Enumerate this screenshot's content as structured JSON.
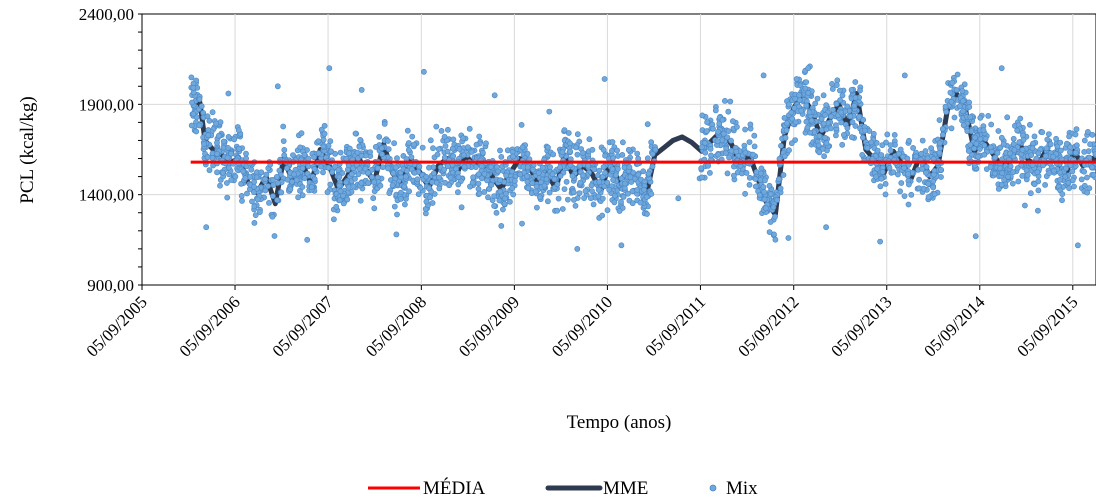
{
  "chart_data": {
    "type": "scatter",
    "title": "",
    "xlabel": "Tempo (anos)",
    "ylabel": "PCL (kcal/kg)",
    "x_range": [
      "05/09/2005",
      "05/12/2015"
    ],
    "ylim": [
      900,
      2400
    ],
    "y_ticks": [
      "900,00",
      "1400,00",
      "1900,00",
      "2400,00"
    ],
    "x_ticks": [
      "05/09/2005",
      "05/09/2006",
      "05/09/2007",
      "05/09/2008",
      "05/09/2009",
      "05/09/2010",
      "05/09/2011",
      "05/09/2012",
      "05/09/2013",
      "05/09/2014",
      "05/09/2015"
    ],
    "grid": true,
    "legend_position": "bottom",
    "series": [
      {
        "name": "MÉDIA",
        "kind": "line",
        "color": "#ff0000",
        "x": [
          "2006-03-15",
          "2015-12-05"
        ],
        "y": [
          1580,
          1580
        ]
      },
      {
        "name": "MME",
        "kind": "line",
        "color": "#2e3a4f",
        "x": [
          "2006-03-15",
          "2006-04-20",
          "2006-05-10",
          "2006-06-10",
          "2006-07-15",
          "2006-08-20",
          "2006-09-20",
          "2006-10-25",
          "2006-12-01",
          "2007-01-05",
          "2007-02-10",
          "2007-03-15",
          "2007-04-20",
          "2007-05-25",
          "2007-06-30",
          "2007-08-05",
          "2007-09-10",
          "2007-10-15",
          "2007-11-20",
          "2007-12-25",
          "2008-02-01",
          "2008-03-05",
          "2008-04-10",
          "2008-05-15",
          "2008-06-20",
          "2008-07-25",
          "2008-09-01",
          "2008-10-05",
          "2008-11-10",
          "2008-12-15",
          "2009-01-20",
          "2009-02-25",
          "2009-04-01",
          "2009-05-05",
          "2009-06-10",
          "2009-07-15",
          "2009-08-20",
          "2009-09-25",
          "2009-11-01",
          "2009-12-05",
          "2010-01-10",
          "2010-02-15",
          "2010-03-20",
          "2010-04-25",
          "2010-06-01",
          "2010-07-05",
          "2010-08-10",
          "2010-09-15",
          "2010-10-20",
          "2010-11-25",
          "2011-01-01",
          "2011-02-05",
          "2011-03-10",
          "2011-04-15",
          "2011-05-20",
          "2011-06-25",
          "2011-08-01",
          "2011-09-10",
          "2011-10-20",
          "2011-11-25",
          "2012-01-05",
          "2012-02-10",
          "2012-03-15",
          "2012-04-20",
          "2012-05-20",
          "2012-06-25",
          "2012-07-30",
          "2012-09-05",
          "2012-10-10",
          "2012-11-15",
          "2012-12-20",
          "2013-01-25",
          "2013-03-01",
          "2013-04-05",
          "2013-05-10",
          "2013-06-15",
          "2013-07-20",
          "2013-08-25",
          "2013-10-01",
          "2013-11-05",
          "2013-12-10",
          "2014-01-15",
          "2014-02-20",
          "2014-03-25",
          "2014-05-01",
          "2014-06-05",
          "2014-07-10",
          "2014-08-15",
          "2014-09-20",
          "2014-10-25",
          "2014-12-01",
          "2015-01-05",
          "2015-02-10",
          "2015-03-15",
          "2015-04-20",
          "2015-05-25",
          "2015-07-01",
          "2015-08-05",
          "2015-09-10",
          "2015-10-15",
          "2015-11-20",
          "2015-12-05"
        ],
        "y": [
          1910,
          1910,
          1700,
          1650,
          1620,
          1580,
          1600,
          1470,
          1410,
          1500,
          1350,
          1600,
          1470,
          1580,
          1460,
          1650,
          1560,
          1430,
          1500,
          1620,
          1540,
          1470,
          1680,
          1520,
          1450,
          1600,
          1520,
          1440,
          1560,
          1600,
          1510,
          1620,
          1560,
          1580,
          1500,
          1430,
          1520,
          1600,
          1560,
          1470,
          1530,
          1430,
          1620,
          1500,
          1560,
          1520,
          1420,
          1580,
          1470,
          1530,
          1480,
          1400,
          1620,
          1660,
          1700,
          1720,
          1690,
          1640,
          1700,
          1750,
          1680,
          1560,
          1620,
          1480,
          1360,
          1290,
          1720,
          1880,
          1950,
          1860,
          1720,
          1820,
          1900,
          1780,
          1960,
          1650,
          1590,
          1520,
          1640,
          1570,
          1490,
          1620,
          1500,
          1560,
          1870,
          1960,
          1880,
          1640,
          1700,
          1630,
          1550,
          1600,
          1680,
          1590,
          1560,
          1650,
          1590,
          1500,
          1640,
          1560,
          1600,
          1580
        ]
      },
      {
        "name": "Mix",
        "kind": "scatter",
        "color": "#6fa8dc",
        "x": [
          "2006-03-20",
          "2006-05-15",
          "2006-08-10",
          "2006-11-20",
          "2007-02-20",
          "2007-06-15",
          "2007-09-10",
          "2007-10-20",
          "2008-01-15",
          "2008-05-30",
          "2008-09-15",
          "2009-02-10",
          "2009-06-20",
          "2009-10-05",
          "2010-01-20",
          "2010-05-10",
          "2010-08-25",
          "2010-10-30",
          "2011-02-10",
          "2011-06-10",
          "2011-10-05",
          "2012-02-10",
          "2012-05-10",
          "2012-08-15",
          "2012-11-01",
          "2013-01-10",
          "2013-04-20",
          "2013-08-10",
          "2013-11-15",
          "2014-02-15",
          "2014-05-20",
          "2014-08-20",
          "2014-11-30",
          "2015-03-01",
          "2015-06-20",
          "2015-09-25",
          "2015-11-25"
        ],
        "y": [
          1910,
          1220,
          1960,
          1580,
          2000,
          1150,
          2100,
          1450,
          1980,
          1180,
          2080,
          1330,
          1950,
          1240,
          1860,
          1100,
          2040,
          1120,
          1790,
          1380,
          1560,
          1580,
          2060,
          1160,
          2100,
          1220,
          1980,
          1140,
          2060,
          1460,
          2020,
          1170,
          2100,
          1340,
          1610,
          1120,
          1510
        ]
      }
    ]
  }
}
